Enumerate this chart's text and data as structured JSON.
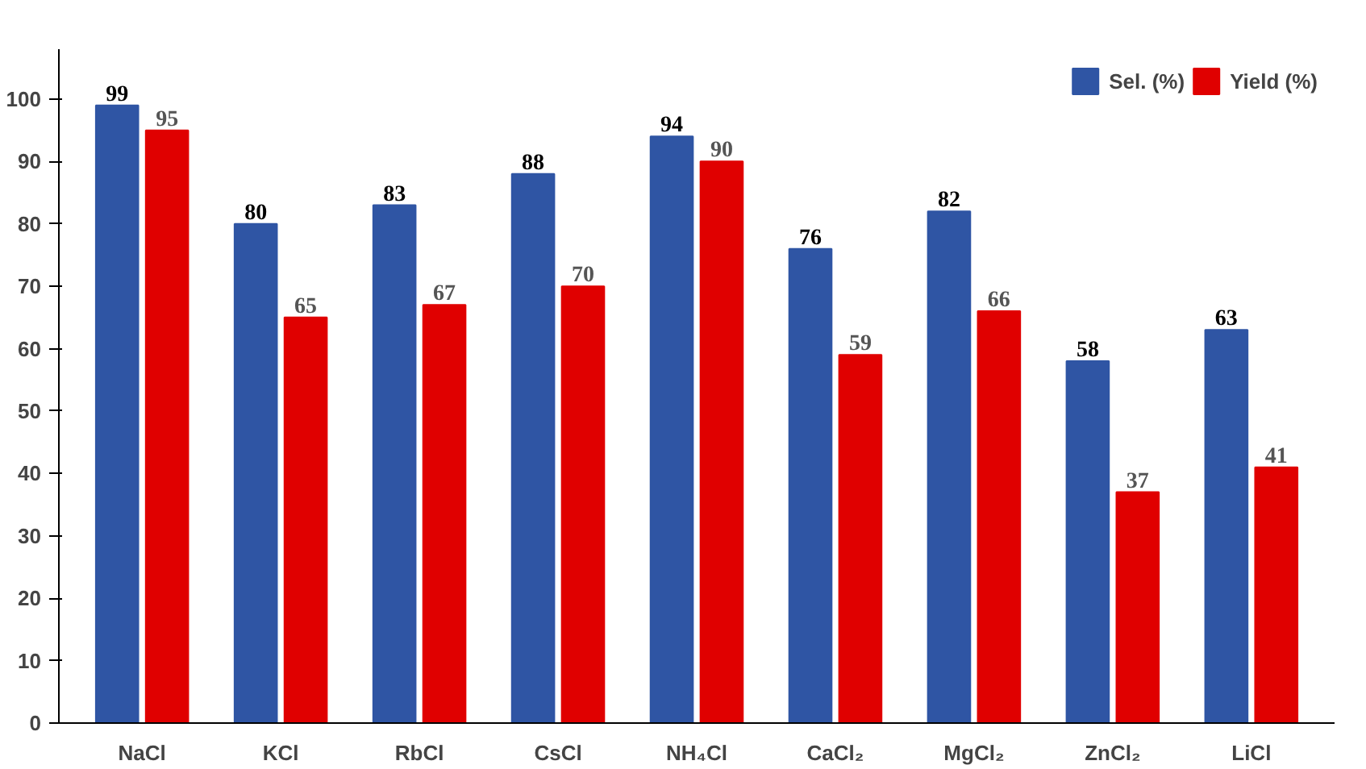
{
  "chart_data": {
    "type": "bar",
    "categories": [
      "NaCl",
      "KCl",
      "RbCl",
      "CsCl",
      "NH₄Cl",
      "CaCl₂",
      "MgCl₂",
      "ZnCl₂",
      "LiCl"
    ],
    "series": [
      {
        "name": "Sel. (%)",
        "color": "#2f55a4",
        "values": [
          99,
          80,
          83,
          88,
          94,
          76,
          82,
          58,
          63
        ]
      },
      {
        "name": "Yield (%)",
        "color": "#e00000",
        "values": [
          95,
          65,
          67,
          70,
          90,
          59,
          66,
          37,
          41
        ]
      }
    ],
    "ylim": [
      0,
      108
    ],
    "yticks": [
      0,
      10,
      20,
      30,
      40,
      50,
      60,
      70,
      80,
      90,
      100
    ],
    "grid": false,
    "legend": "top right",
    "data_labels": true
  }
}
